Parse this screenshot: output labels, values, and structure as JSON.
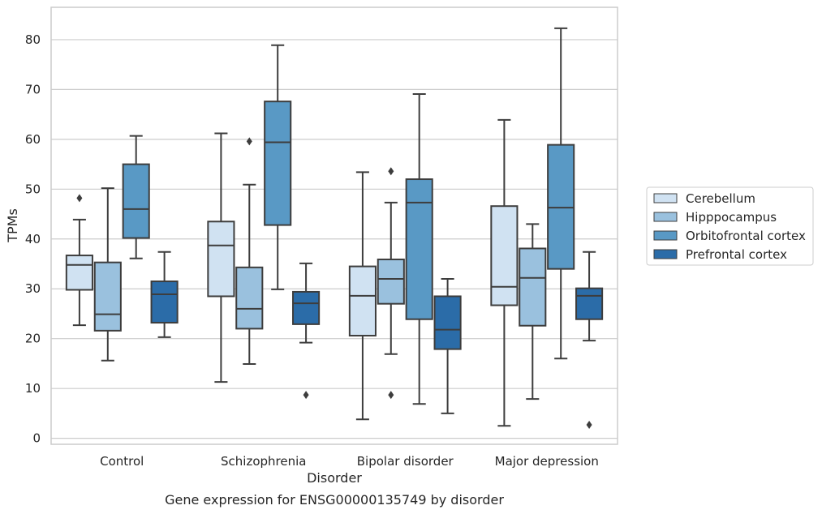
{
  "caption": "Gene expression for ENSG00000135749 by disorder",
  "chart_data": {
    "type": "box",
    "xlabel": "Disorder",
    "ylabel": "TPMs",
    "ylim": [
      -1.2,
      86.5
    ],
    "yticks": [
      0,
      10,
      20,
      30,
      40,
      50,
      60,
      70,
      80
    ],
    "grid": "horizontal",
    "legend_position": "right",
    "categories": [
      "Control",
      "Schizophrenia",
      "Bipolar disorder",
      "Major depression"
    ],
    "series": [
      {
        "name": "Cerebellum",
        "color": "#d0e2f2",
        "boxes": [
          {
            "whisker_low": 22.7,
            "q1": 29.8,
            "median": 34.8,
            "q3": 36.7,
            "whisker_high": 43.9,
            "outliers": [
              48.2
            ]
          },
          {
            "whisker_low": 11.3,
            "q1": 28.5,
            "median": 38.7,
            "q3": 43.5,
            "whisker_high": 61.2,
            "outliers": []
          },
          {
            "whisker_low": 3.8,
            "q1": 20.6,
            "median": 28.6,
            "q3": 34.5,
            "whisker_high": 53.4,
            "outliers": []
          },
          {
            "whisker_low": 2.5,
            "q1": 26.7,
            "median": 30.4,
            "q3": 46.6,
            "whisker_high": 63.9,
            "outliers": []
          }
        ]
      },
      {
        "name": "Hipppocampus",
        "color": "#9ac1de",
        "boxes": [
          {
            "whisker_low": 15.6,
            "q1": 21.6,
            "median": 24.9,
            "q3": 35.3,
            "whisker_high": 50.2,
            "outliers": []
          },
          {
            "whisker_low": 14.9,
            "q1": 22.0,
            "median": 26.0,
            "q3": 34.3,
            "whisker_high": 50.9,
            "outliers": [
              59.6
            ]
          },
          {
            "whisker_low": 16.9,
            "q1": 27.0,
            "median": 32.0,
            "q3": 35.9,
            "whisker_high": 47.3,
            "outliers": [
              53.6,
              8.7
            ]
          },
          {
            "whisker_low": 7.9,
            "q1": 22.6,
            "median": 32.2,
            "q3": 38.1,
            "whisker_high": 43.0,
            "outliers": []
          }
        ]
      },
      {
        "name": "Orbitofrontal cortex",
        "color": "#5999c5",
        "boxes": [
          {
            "whisker_low": 36.1,
            "q1": 40.2,
            "median": 46.0,
            "q3": 55.0,
            "whisker_high": 60.7,
            "outliers": []
          },
          {
            "whisker_low": 29.9,
            "q1": 42.8,
            "median": 59.4,
            "q3": 67.6,
            "whisker_high": 78.9,
            "outliers": []
          },
          {
            "whisker_low": 6.9,
            "q1": 23.9,
            "median": 47.3,
            "q3": 52.0,
            "whisker_high": 69.1,
            "outliers": []
          },
          {
            "whisker_low": 16.0,
            "q1": 34.0,
            "median": 46.3,
            "q3": 58.9,
            "whisker_high": 82.3,
            "outliers": []
          }
        ]
      },
      {
        "name": "Prefrontal cortex",
        "color": "#2b6ca8",
        "boxes": [
          {
            "whisker_low": 20.3,
            "q1": 23.2,
            "median": 28.9,
            "q3": 31.5,
            "whisker_high": 37.4,
            "outliers": []
          },
          {
            "whisker_low": 19.2,
            "q1": 22.9,
            "median": 27.1,
            "q3": 29.4,
            "whisker_high": 35.1,
            "outliers": [
              8.7
            ]
          },
          {
            "whisker_low": 5.0,
            "q1": 17.9,
            "median": 21.8,
            "q3": 28.5,
            "whisker_high": 32.0,
            "outliers": []
          },
          {
            "whisker_low": 19.6,
            "q1": 23.9,
            "median": 28.6,
            "q3": 30.1,
            "whisker_high": 37.4,
            "outliers": [
              2.7
            ]
          }
        ]
      }
    ]
  }
}
